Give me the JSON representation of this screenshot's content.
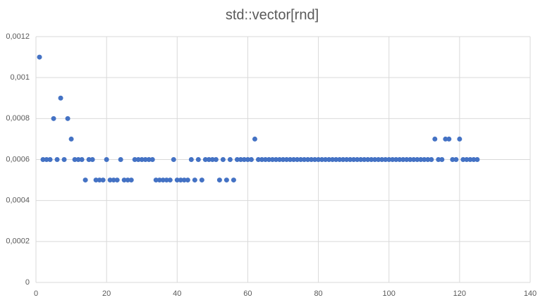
{
  "chart_data": {
    "type": "scatter",
    "title": "std::vector[rnd]",
    "color": "#4472c4",
    "grid": true,
    "xlim": [
      0,
      140
    ],
    "xticks": [
      0,
      20,
      40,
      60,
      80,
      100,
      120,
      140
    ],
    "ylim": [
      0,
      0.0012
    ],
    "yticks": [
      0,
      {
        "value": 0.0002,
        "label": "0,0002"
      },
      {
        "value": 0.0004,
        "label": "0,0004"
      },
      {
        "value": 0.0006,
        "label": "0,0006"
      },
      {
        "value": 0.0008,
        "label": "0,0008"
      },
      {
        "value": 0.001,
        "label": "0,001"
      },
      {
        "value": 0.0012,
        "label": "0,0012"
      }
    ],
    "x": [
      1,
      2,
      3,
      4,
      5,
      6,
      7,
      8,
      9,
      10,
      11,
      12,
      13,
      14,
      15,
      16,
      17,
      18,
      19,
      20,
      21,
      22,
      23,
      24,
      25,
      26,
      27,
      28,
      29,
      30,
      31,
      32,
      33,
      34,
      35,
      36,
      37,
      38,
      39,
      40,
      41,
      42,
      43,
      44,
      45,
      46,
      47,
      48,
      49,
      50,
      51,
      52,
      53,
      54,
      55,
      56,
      57,
      58,
      59,
      60,
      61,
      62,
      63,
      64,
      65,
      66,
      67,
      68,
      69,
      70,
      71,
      72,
      73,
      74,
      75,
      76,
      77,
      78,
      79,
      80,
      81,
      82,
      83,
      84,
      85,
      86,
      87,
      88,
      89,
      90,
      91,
      92,
      93,
      94,
      95,
      96,
      97,
      98,
      99,
      100,
      101,
      102,
      103,
      104,
      105,
      106,
      107,
      108,
      109,
      110,
      111,
      112,
      113,
      114,
      115,
      116,
      117,
      118,
      119,
      120,
      121,
      122,
      123,
      124,
      125
    ],
    "values": [
      0.0011,
      0.0006,
      0.0006,
      0.0006,
      0.0008,
      0.0006,
      0.0009,
      0.0006,
      0.0008,
      0.0007,
      0.0006,
      0.0006,
      0.0006,
      0.0005,
      0.0006,
      0.0006,
      0.0005,
      0.0005,
      0.0005,
      0.0006,
      0.0005,
      0.0005,
      0.0005,
      0.0006,
      0.0005,
      0.0005,
      0.0005,
      0.0006,
      0.0006,
      0.0006,
      0.0006,
      0.0006,
      0.0006,
      0.0005,
      0.0005,
      0.0005,
      0.0005,
      0.0005,
      0.0006,
      0.0005,
      0.0005,
      0.0005,
      0.0005,
      0.0006,
      0.0005,
      0.0006,
      0.0005,
      0.0006,
      0.0006,
      0.0006,
      0.0006,
      0.0005,
      0.0006,
      0.0005,
      0.0006,
      0.0005,
      0.0006,
      0.0006,
      0.0006,
      0.0006,
      0.0006,
      0.0007,
      0.0006,
      0.0006,
      0.0006,
      0.0006,
      0.0006,
      0.0006,
      0.0006,
      0.0006,
      0.0006,
      0.0006,
      0.0006,
      0.0006,
      0.0006,
      0.0006,
      0.0006,
      0.0006,
      0.0006,
      0.0006,
      0.0006,
      0.0006,
      0.0006,
      0.0006,
      0.0006,
      0.0006,
      0.0006,
      0.0006,
      0.0006,
      0.0006,
      0.0006,
      0.0006,
      0.0006,
      0.0006,
      0.0006,
      0.0006,
      0.0006,
      0.0006,
      0.0006,
      0.0006,
      0.0006,
      0.0006,
      0.0006,
      0.0006,
      0.0006,
      0.0006,
      0.0006,
      0.0006,
      0.0006,
      0.0006,
      0.0006,
      0.0006,
      0.0007,
      0.0006,
      0.0006,
      0.0007,
      0.0007,
      0.0006,
      0.0006,
      0.0007,
      0.0006,
      0.0006,
      0.0006,
      0.0006,
      0.0006
    ]
  }
}
